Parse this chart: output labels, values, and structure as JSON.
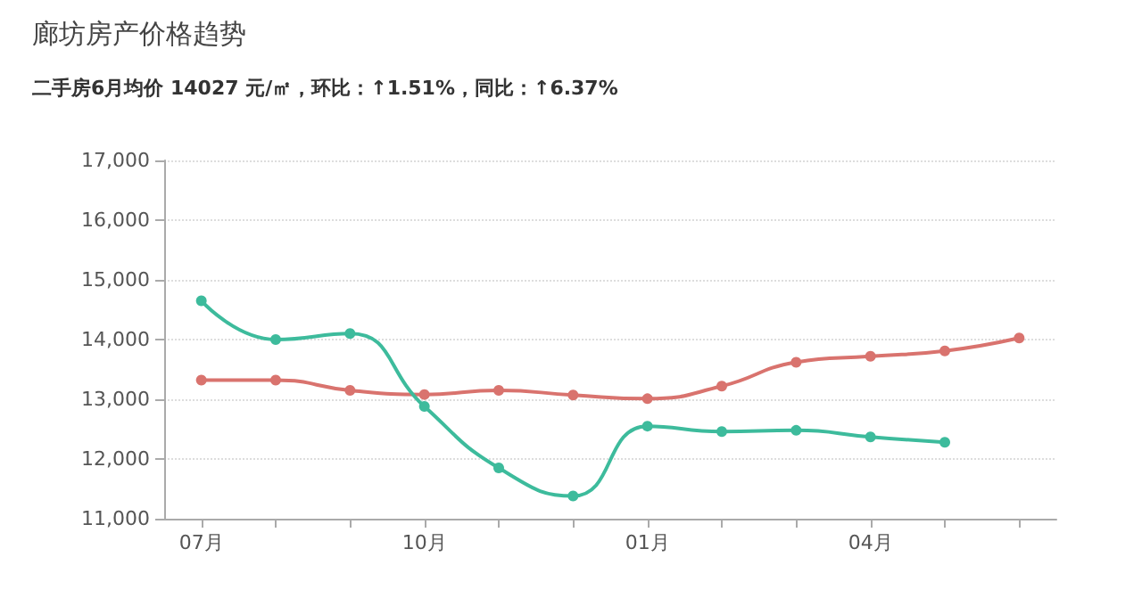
{
  "chart_data": {
    "type": "line",
    "title": "廊坊房产价格趋势",
    "subtitle": "二手房6月均价 14027 元/㎡，环比：↑1.51%，同比：↑6.37%",
    "categories": [
      "07月",
      null,
      null,
      "10月",
      null,
      null,
      "01月",
      null,
      null,
      "04月",
      null,
      null
    ],
    "series": [
      {
        "color": "#d9736e",
        "values": [
          13320,
          13320,
          13150,
          13080,
          13150,
          13070,
          13010,
          13220,
          13620,
          13720,
          13810,
          14027
        ]
      },
      {
        "color": "#3dbb9c",
        "values": [
          14650,
          14000,
          14100,
          12880,
          11850,
          11380,
          12550,
          12460,
          12480,
          12370,
          12280,
          null
        ]
      }
    ],
    "ylim": [
      11000,
      17000
    ],
    "yticks": [
      {
        "value": 11000,
        "label": "11,000"
      },
      {
        "value": 12000,
        "label": "12,000"
      },
      {
        "value": 13000,
        "label": "13,000"
      },
      {
        "value": 14000,
        "label": "14,000"
      },
      {
        "value": 15000,
        "label": "15,000"
      },
      {
        "value": 16000,
        "label": "16,000"
      },
      {
        "value": 17000,
        "label": "17,000"
      }
    ],
    "grid": "y",
    "marker": "circle"
  }
}
